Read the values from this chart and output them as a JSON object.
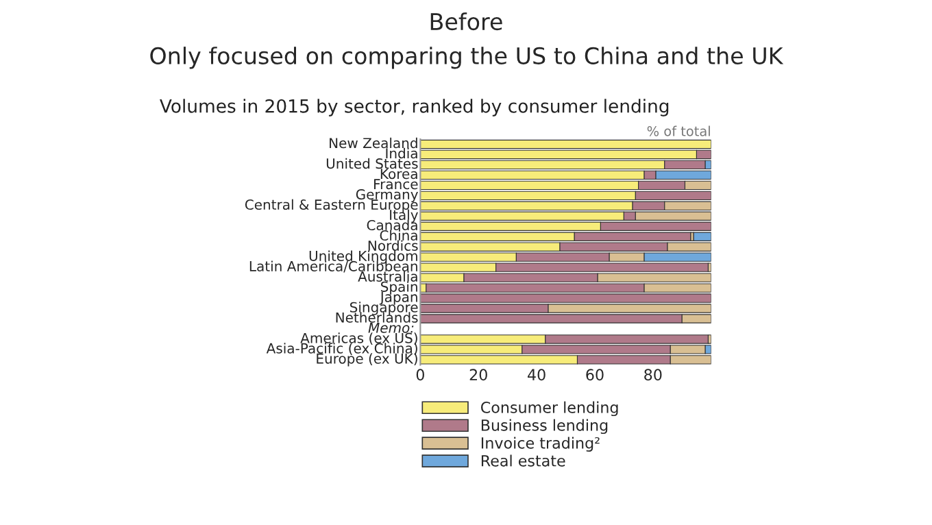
{
  "chart_data": {
    "type": "bar",
    "orientation": "horizontal",
    "stacked": true,
    "title": "Before",
    "subtitle": "Only focused on comparing the US to China and the UK",
    "annotations": [
      "Volumes in 2015 by sector, ranked by consumer lending",
      "% of total",
      "Memo:"
    ],
    "categories": [
      "New Zealand",
      "India",
      "United States",
      "Korea",
      "France",
      "Germany",
      "Central & Eastern Europe",
      "Italy",
      "Canada",
      "China",
      "Nordics",
      "United Kingdom",
      "Latin America/Caribbean",
      "Australia",
      "Spain",
      "Japan",
      "Singapore",
      "Netherlands",
      null,
      "Americas (ex US)",
      "Asia-Pacific (ex China)",
      "Europe (ex UK)"
    ],
    "series": [
      {
        "name": "Consumer lending",
        "color": "#f7ec7a",
        "values": [
          100,
          95,
          84,
          77,
          75,
          74,
          73,
          70,
          62,
          53,
          48,
          33,
          26,
          15,
          2,
          null,
          null,
          null,
          null,
          43,
          35,
          54
        ]
      },
      {
        "name": "Business lending",
        "color": "#b07a8a",
        "values": [
          null,
          5,
          14,
          4,
          16,
          26,
          11,
          4,
          38,
          40,
          37,
          32,
          73,
          46,
          75,
          100,
          44,
          90,
          null,
          56,
          51,
          32
        ]
      },
      {
        "name": "Invoice trading²",
        "color": "#d9bf93",
        "values": [
          null,
          null,
          null,
          null,
          9,
          null,
          16,
          26,
          null,
          1,
          15,
          12,
          1,
          39,
          23,
          null,
          56,
          10,
          null,
          1,
          12,
          14
        ]
      },
      {
        "name": "Real estate",
        "color": "#6fa8dc",
        "values": [
          null,
          null,
          2,
          19,
          null,
          null,
          null,
          null,
          null,
          6,
          null,
          23,
          null,
          null,
          null,
          null,
          null,
          null,
          null,
          null,
          2,
          null
        ]
      }
    ],
    "xlim": [
      0,
      100
    ],
    "xticks": [
      0,
      20,
      40,
      60,
      80
    ],
    "legend": "bottom",
    "grid": false
  }
}
